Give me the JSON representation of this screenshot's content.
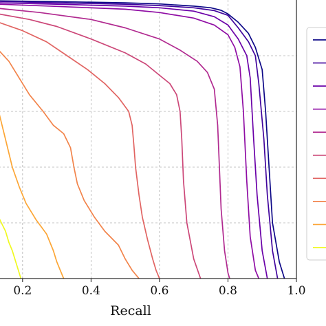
{
  "chart_data": {
    "type": "line",
    "xlabel": "Recall",
    "ylabel": "",
    "xlim": [
      0.13,
      1.0
    ],
    "ylim": [
      0.0,
      1.0
    ],
    "x_ticks": [
      0.2,
      0.4,
      0.6,
      0.8,
      1.0
    ],
    "x_tick_labels": [
      "0.2",
      "0.4",
      "0.6",
      "0.8",
      "1.0"
    ],
    "y_gridlines": [
      0.2,
      0.4,
      0.6,
      0.8,
      1.0
    ],
    "grid": true,
    "legend": "right",
    "series": [
      {
        "color": "#0d0887",
        "points": [
          [
            0.13,
            0.997
          ],
          [
            0.3,
            0.994
          ],
          [
            0.5,
            0.99
          ],
          [
            0.6,
            0.986
          ],
          [
            0.7,
            0.978
          ],
          [
            0.75,
            0.972
          ],
          [
            0.78,
            0.963
          ],
          [
            0.8,
            0.95
          ],
          [
            0.83,
            0.92
          ],
          [
            0.86,
            0.88
          ],
          [
            0.88,
            0.83
          ],
          [
            0.9,
            0.75
          ],
          [
            0.91,
            0.6
          ],
          [
            0.92,
            0.4
          ],
          [
            0.93,
            0.2
          ],
          [
            0.95,
            0.06
          ],
          [
            0.965,
            0.0
          ]
        ]
      },
      {
        "color": "#41049d",
        "points": [
          [
            0.13,
            0.995
          ],
          [
            0.3,
            0.99
          ],
          [
            0.5,
            0.985
          ],
          [
            0.6,
            0.98
          ],
          [
            0.7,
            0.972
          ],
          [
            0.76,
            0.962
          ],
          [
            0.8,
            0.945
          ],
          [
            0.83,
            0.9
          ],
          [
            0.86,
            0.85
          ],
          [
            0.88,
            0.8
          ],
          [
            0.89,
            0.7
          ],
          [
            0.905,
            0.5
          ],
          [
            0.915,
            0.3
          ],
          [
            0.93,
            0.1
          ],
          [
            0.945,
            0.0
          ]
        ]
      },
      {
        "color": "#6a00a8",
        "points": [
          [
            0.13,
            0.99
          ],
          [
            0.3,
            0.985
          ],
          [
            0.5,
            0.978
          ],
          [
            0.6,
            0.972
          ],
          [
            0.7,
            0.96
          ],
          [
            0.76,
            0.94
          ],
          [
            0.8,
            0.91
          ],
          [
            0.83,
            0.86
          ],
          [
            0.855,
            0.8
          ],
          [
            0.865,
            0.72
          ],
          [
            0.875,
            0.5
          ],
          [
            0.885,
            0.3
          ],
          [
            0.9,
            0.1
          ],
          [
            0.915,
            0.0
          ]
        ]
      },
      {
        "color": "#8f0da4",
        "points": [
          [
            0.13,
            0.985
          ],
          [
            0.3,
            0.977
          ],
          [
            0.5,
            0.967
          ],
          [
            0.6,
            0.955
          ],
          [
            0.7,
            0.935
          ],
          [
            0.76,
            0.91
          ],
          [
            0.8,
            0.875
          ],
          [
            0.82,
            0.83
          ],
          [
            0.835,
            0.76
          ],
          [
            0.845,
            0.6
          ],
          [
            0.855,
            0.35
          ],
          [
            0.865,
            0.15
          ],
          [
            0.88,
            0.03
          ],
          [
            0.89,
            0.0
          ]
        ]
      },
      {
        "color": "#b12a90",
        "points": [
          [
            0.13,
            0.97
          ],
          [
            0.25,
            0.955
          ],
          [
            0.4,
            0.93
          ],
          [
            0.5,
            0.9
          ],
          [
            0.6,
            0.86
          ],
          [
            0.66,
            0.82
          ],
          [
            0.71,
            0.78
          ],
          [
            0.74,
            0.74
          ],
          [
            0.76,
            0.68
          ],
          [
            0.77,
            0.55
          ],
          [
            0.775,
            0.4
          ],
          [
            0.78,
            0.25
          ],
          [
            0.79,
            0.1
          ],
          [
            0.8,
            0.02
          ],
          [
            0.805,
            0.0
          ]
        ]
      },
      {
        "color": "#cc4778",
        "points": [
          [
            0.13,
            0.95
          ],
          [
            0.22,
            0.93
          ],
          [
            0.3,
            0.905
          ],
          [
            0.4,
            0.86
          ],
          [
            0.5,
            0.81
          ],
          [
            0.56,
            0.77
          ],
          [
            0.6,
            0.73
          ],
          [
            0.63,
            0.7
          ],
          [
            0.65,
            0.66
          ],
          [
            0.66,
            0.6
          ],
          [
            0.665,
            0.5
          ],
          [
            0.67,
            0.35
          ],
          [
            0.68,
            0.2
          ],
          [
            0.7,
            0.07
          ],
          [
            0.72,
            0.0
          ]
        ]
      },
      {
        "color": "#e16462",
        "points": [
          [
            0.13,
            0.92
          ],
          [
            0.2,
            0.89
          ],
          [
            0.27,
            0.85
          ],
          [
            0.33,
            0.8
          ],
          [
            0.39,
            0.75
          ],
          [
            0.44,
            0.7
          ],
          [
            0.48,
            0.65
          ],
          [
            0.51,
            0.6
          ],
          [
            0.52,
            0.55
          ],
          [
            0.525,
            0.48
          ],
          [
            0.53,
            0.4
          ],
          [
            0.54,
            0.3
          ],
          [
            0.55,
            0.22
          ],
          [
            0.565,
            0.14
          ],
          [
            0.58,
            0.07
          ],
          [
            0.59,
            0.03
          ],
          [
            0.6,
            0.0
          ]
        ]
      },
      {
        "color": "#f2844b",
        "points": [
          [
            0.13,
            0.82
          ],
          [
            0.16,
            0.78
          ],
          [
            0.19,
            0.72
          ],
          [
            0.22,
            0.66
          ],
          [
            0.26,
            0.6
          ],
          [
            0.29,
            0.55
          ],
          [
            0.32,
            0.52
          ],
          [
            0.34,
            0.47
          ],
          [
            0.35,
            0.4
          ],
          [
            0.36,
            0.34
          ],
          [
            0.38,
            0.28
          ],
          [
            0.41,
            0.22
          ],
          [
            0.44,
            0.17
          ],
          [
            0.48,
            0.12
          ],
          [
            0.5,
            0.07
          ],
          [
            0.52,
            0.03
          ],
          [
            0.54,
            0.0
          ]
        ]
      },
      {
        "color": "#fca636",
        "points": [
          [
            0.13,
            0.6
          ],
          [
            0.15,
            0.5
          ],
          [
            0.17,
            0.4
          ],
          [
            0.19,
            0.33
          ],
          [
            0.21,
            0.27
          ],
          [
            0.24,
            0.21
          ],
          [
            0.27,
            0.16
          ],
          [
            0.29,
            0.1
          ],
          [
            0.3,
            0.06
          ],
          [
            0.31,
            0.03
          ],
          [
            0.32,
            0.0
          ]
        ]
      },
      {
        "color": "#f0f921",
        "points": [
          [
            0.13,
            0.22
          ],
          [
            0.15,
            0.17
          ],
          [
            0.16,
            0.13
          ],
          [
            0.17,
            0.1
          ],
          [
            0.18,
            0.06
          ],
          [
            0.19,
            0.02
          ],
          [
            0.195,
            0.0
          ]
        ]
      }
    ]
  }
}
